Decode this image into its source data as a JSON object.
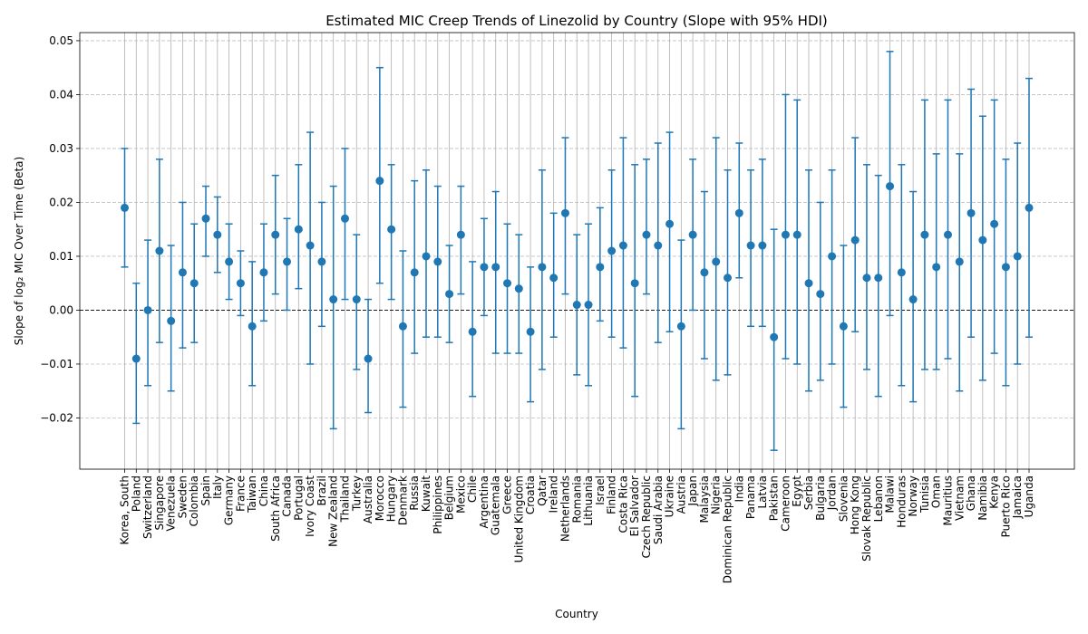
{
  "chart_data": {
    "type": "scatter",
    "title": "Estimated MIC Creep Trends of Linezolid by Country (Slope with 95% HDI)",
    "xlabel": "Country",
    "ylabel": "Slope of log₂ MIC Over Time (Beta)",
    "ylim": [
      -0.0295,
      0.0515
    ],
    "yticks": [
      -0.02,
      -0.01,
      0.0,
      0.01,
      0.02,
      0.03,
      0.04,
      0.05
    ],
    "ytick_labels": [
      "−0.02",
      "−0.01",
      "0.00",
      "0.01",
      "0.02",
      "0.03",
      "0.04",
      "0.05"
    ],
    "grid": true,
    "reference_line_y": 0,
    "series_color": "#1f77b4",
    "categories": [
      "Korea, South",
      "Poland",
      "Switzerland",
      "Singapore",
      "Venezuela",
      "Sweden",
      "Colombia",
      "Spain",
      "Italy",
      "Germany",
      "France",
      "Taiwan",
      "China",
      "South Africa",
      "Canada",
      "Portugal",
      "Ivory Coast",
      "Brazil",
      "New Zealand",
      "Thailand",
      "Turkey",
      "Australia",
      "Morocco",
      "Hungary",
      "Denmark",
      "Russia",
      "Kuwait",
      "Philippines",
      "Belgium",
      "Mexico",
      "Chile",
      "Argentina",
      "Guatemala",
      "Greece",
      "United Kingdom",
      "Croatia",
      "Qatar",
      "Ireland",
      "Netherlands",
      "Romania",
      "Lithuania",
      "Israel",
      "Finland",
      "Costa Rica",
      "El Salvador",
      "Czech Republic",
      "Saudi Arabia",
      "Ukraine",
      "Austria",
      "Japan",
      "Malaysia",
      "Nigeria",
      "Dominican Republic",
      "India",
      "Panama",
      "Latvia",
      "Pakistan",
      "Cameroon",
      "Egypt",
      "Serbia",
      "Bulgaria",
      "Jordan",
      "Slovenia",
      "Hong Kong",
      "Slovak Republic",
      "Lebanon",
      "Malawi",
      "Honduras",
      "Norway",
      "Tunisia",
      "Oman",
      "Mauritius",
      "Vietnam",
      "Ghana",
      "Namibia",
      "Kenya",
      "Puerto Rico",
      "Jamaica",
      "Uganda"
    ],
    "values": [
      0.019,
      -0.009,
      0.0,
      0.011,
      -0.002,
      0.007,
      0.005,
      0.017,
      0.014,
      0.009,
      0.005,
      -0.003,
      0.007,
      0.014,
      0.009,
      0.015,
      0.012,
      0.009,
      0.002,
      0.017,
      0.002,
      -0.009,
      0.024,
      0.015,
      -0.003,
      0.007,
      0.01,
      0.009,
      0.003,
      0.014,
      -0.004,
      0.008,
      0.008,
      0.005,
      0.004,
      -0.004,
      0.008,
      0.006,
      0.018,
      0.001,
      0.001,
      0.008,
      0.011,
      0.012,
      0.005,
      0.014,
      0.012,
      0.016,
      -0.003,
      0.014,
      0.007,
      0.009,
      0.006,
      0.018,
      0.012,
      0.012,
      -0.005,
      0.014,
      0.014,
      0.005,
      0.003,
      0.01,
      -0.003,
      0.013,
      0.006,
      0.006,
      0.023,
      0.007,
      0.002,
      0.014,
      0.008,
      0.014,
      0.009,
      0.018,
      0.013,
      0.016,
      0.008,
      0.01,
      0.019
    ],
    "hdi_lower": [
      0.008,
      -0.021,
      -0.014,
      -0.006,
      -0.015,
      -0.007,
      -0.006,
      0.01,
      0.007,
      0.002,
      -0.001,
      -0.014,
      -0.002,
      0.003,
      0.0,
      0.004,
      -0.01,
      -0.003,
      -0.022,
      0.002,
      -0.011,
      -0.019,
      0.005,
      0.002,
      -0.018,
      -0.008,
      -0.005,
      -0.005,
      -0.006,
      0.003,
      -0.016,
      -0.001,
      -0.008,
      -0.008,
      -0.008,
      -0.017,
      -0.011,
      -0.005,
      0.003,
      -0.012,
      -0.014,
      -0.002,
      -0.005,
      -0.007,
      -0.016,
      0.003,
      -0.006,
      -0.004,
      -0.022,
      0.0,
      -0.009,
      -0.013,
      -0.012,
      0.006,
      -0.003,
      -0.003,
      -0.026,
      -0.009,
      -0.01,
      -0.015,
      -0.013,
      -0.01,
      -0.018,
      -0.004,
      -0.011,
      -0.016,
      -0.001,
      -0.014,
      -0.017,
      -0.011,
      -0.011,
      -0.009,
      -0.015,
      -0.005,
      -0.013,
      -0.008,
      -0.014,
      -0.01,
      -0.005
    ],
    "hdi_upper": [
      0.03,
      0.005,
      0.013,
      0.028,
      0.012,
      0.02,
      0.016,
      0.023,
      0.021,
      0.016,
      0.011,
      0.009,
      0.016,
      0.025,
      0.017,
      0.027,
      0.033,
      0.02,
      0.023,
      0.03,
      0.014,
      0.002,
      0.045,
      0.027,
      0.011,
      0.024,
      0.026,
      0.023,
      0.012,
      0.023,
      0.009,
      0.017,
      0.022,
      0.016,
      0.014,
      0.008,
      0.026,
      0.018,
      0.032,
      0.014,
      0.016,
      0.019,
      0.026,
      0.032,
      0.027,
      0.028,
      0.031,
      0.033,
      0.013,
      0.028,
      0.022,
      0.032,
      0.026,
      0.031,
      0.026,
      0.028,
      0.015,
      0.04,
      0.039,
      0.026,
      0.02,
      0.026,
      0.012,
      0.032,
      0.027,
      0.025,
      0.048,
      0.027,
      0.022,
      0.039,
      0.029,
      0.039,
      0.029,
      0.041,
      0.036,
      0.039,
      0.028,
      0.031,
      0.043
    ]
  }
}
